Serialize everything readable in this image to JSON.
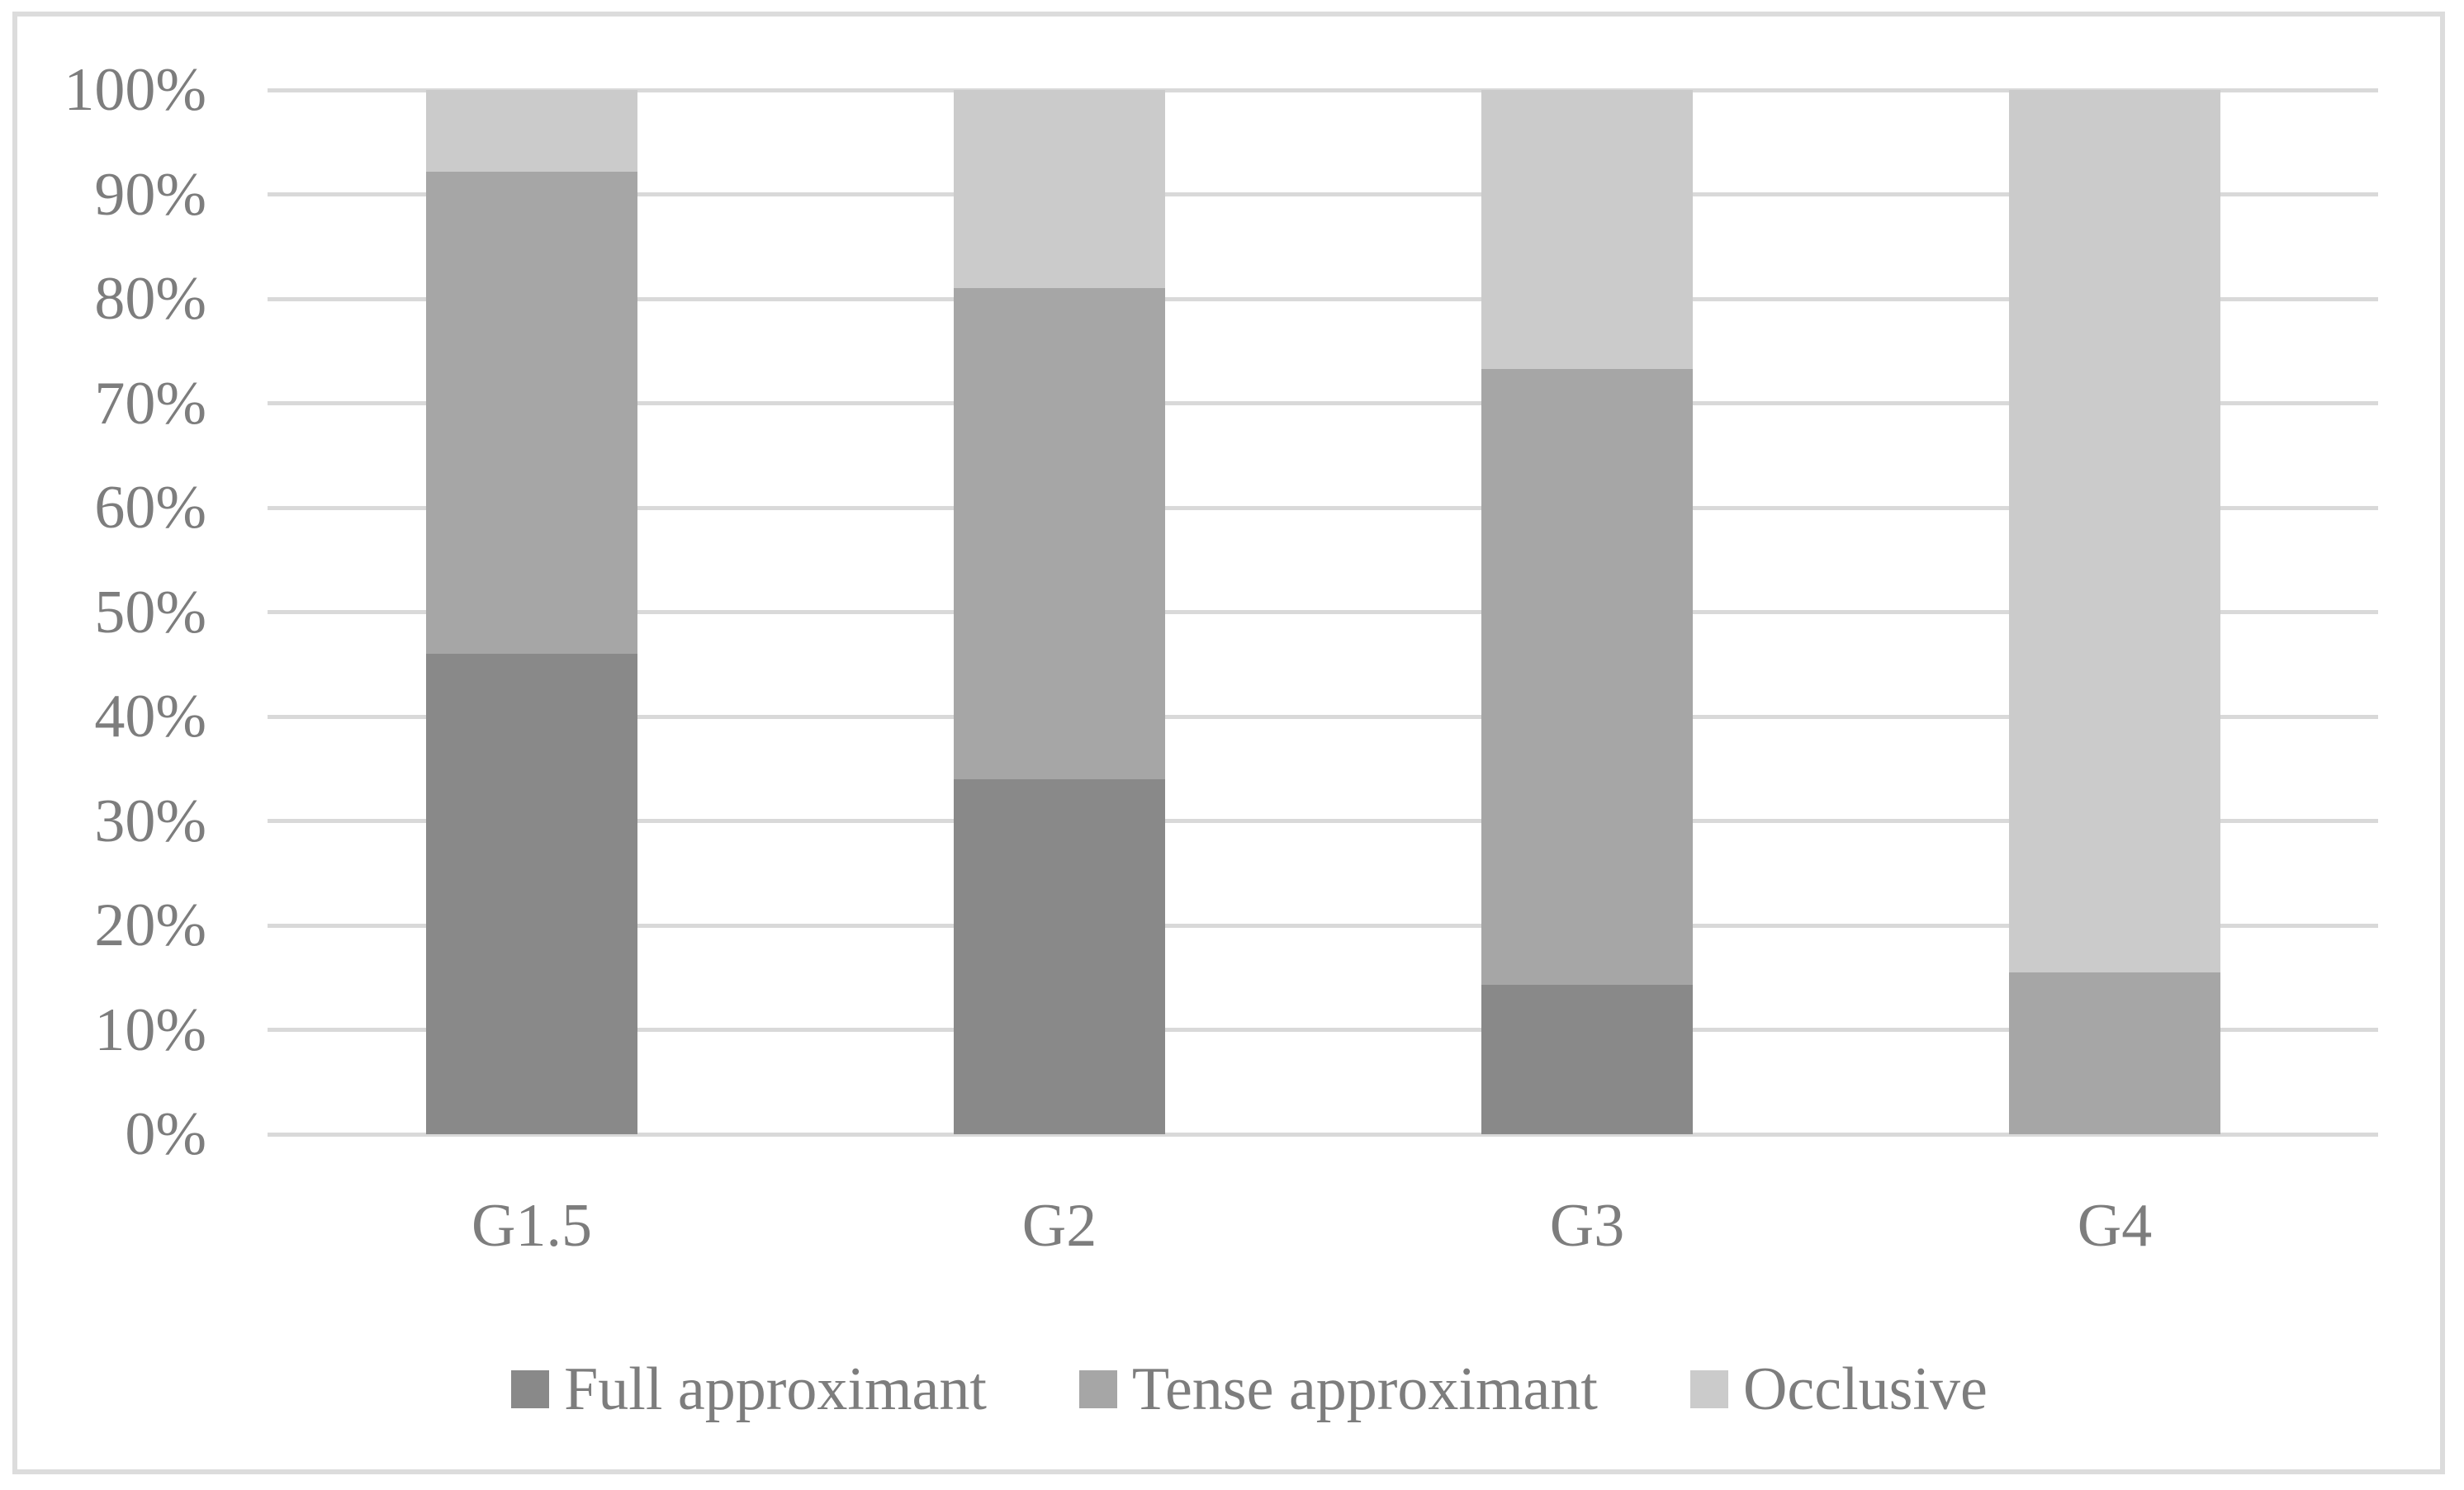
{
  "figure": {
    "background_color": "#ffffff",
    "frame_border_color": "#dcdcdc"
  },
  "chart_data": {
    "type": "bar",
    "stacking": "percent",
    "orientation": "vertical",
    "title": "",
    "xlabel": "",
    "ylabel": "",
    "categories": [
      "G1.5",
      "G2",
      "G3",
      "G4"
    ],
    "series": [
      {
        "name": "Full approximant",
        "color": "#898989",
        "values": [
          46.0,
          34.0,
          14.3,
          0.0
        ]
      },
      {
        "name": "Tense approximant",
        "color": "#a6a6a6",
        "values": [
          46.2,
          47.0,
          59.0,
          15.5
        ]
      },
      {
        "name": "Occlusive",
        "color": "#cbcbcb",
        "values": [
          7.8,
          19.0,
          26.7,
          84.5
        ]
      }
    ],
    "y_ticks": [
      "0%",
      "10%",
      "20%",
      "30%",
      "40%",
      "50%",
      "60%",
      "70%",
      "80%",
      "90%",
      "100%"
    ],
    "ylim": [
      0,
      100
    ],
    "grid": true,
    "gridline_color": "#d9d9d9",
    "text_color": "#7d7d7d",
    "legend_position": "bottom"
  }
}
